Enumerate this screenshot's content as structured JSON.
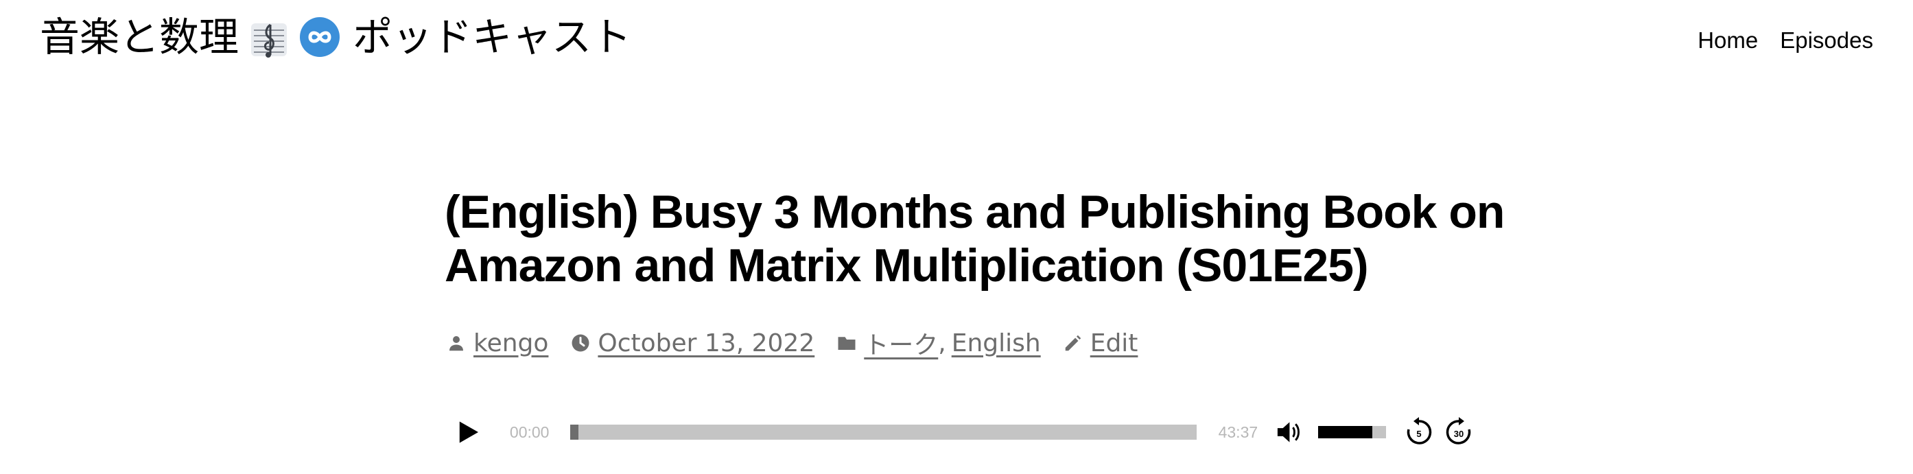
{
  "header": {
    "site_title_prefix": "音楽と数理",
    "site_title_suffix": "ポッドキャスト",
    "icons": [
      "musical-score-icon",
      "infinity-icon"
    ],
    "nav": [
      {
        "label": "Home"
      },
      {
        "label": "Episodes"
      }
    ]
  },
  "post": {
    "title": "(English) Busy 3 Months and Publishing Book on Amazon and Matrix Multiplication (S01E25)",
    "author": "kengo",
    "date": "October 13, 2022",
    "categories": [
      "トーク",
      "English"
    ],
    "edit_label": "Edit"
  },
  "player": {
    "current_time": "00:00",
    "duration": "43:37",
    "progress_fraction": 0.0,
    "volume_fraction": 0.8,
    "rewind_seconds": "5",
    "forward_seconds": "30"
  },
  "colors": {
    "text": "#000000",
    "meta": "#6d6d6d",
    "track": "#c4c4c4",
    "infinity_badge": "#3b8fd9"
  }
}
